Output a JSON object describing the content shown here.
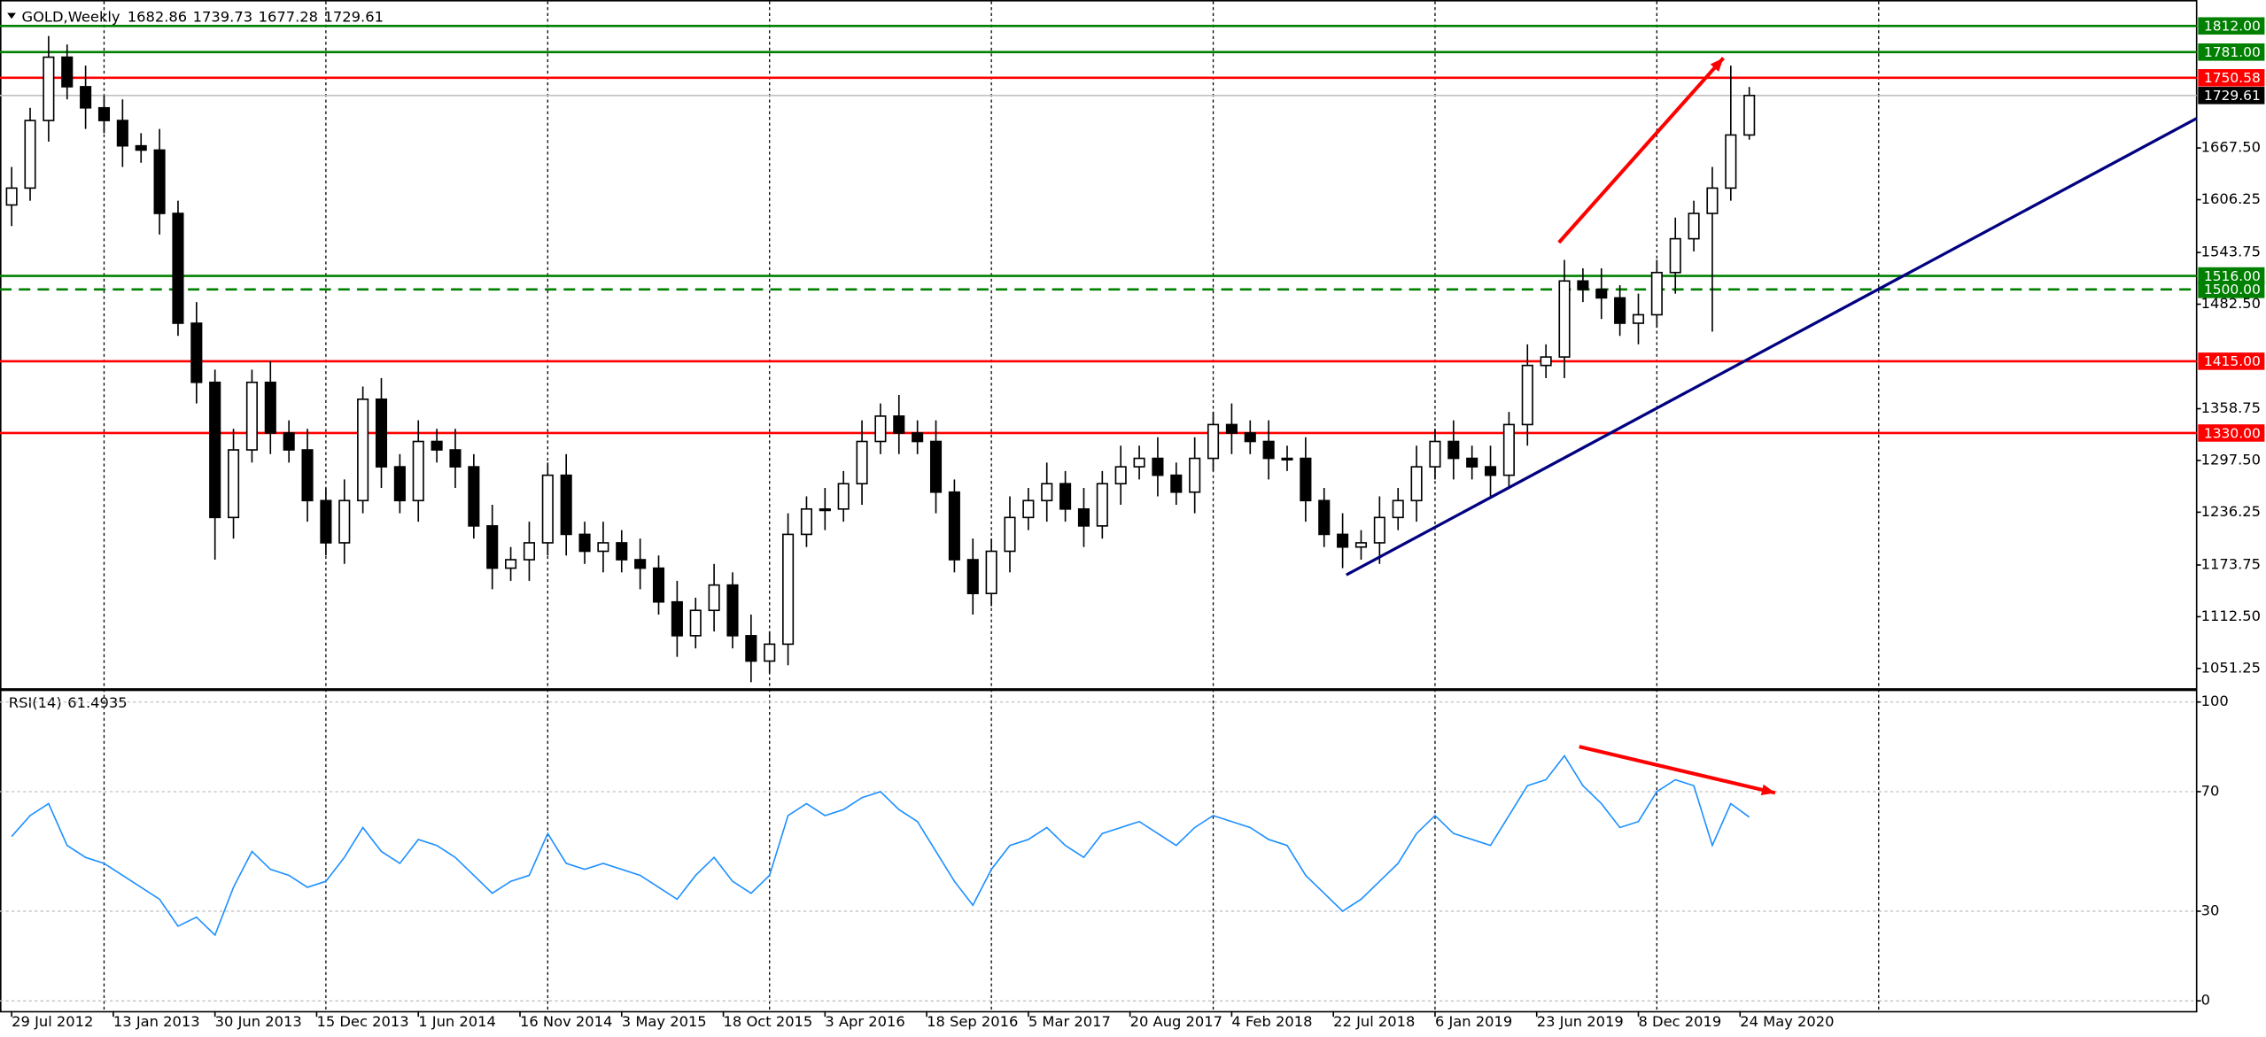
{
  "chart_data": [
    {
      "type": "candlestick",
      "title": "GOLD,Weekly",
      "open": [
        1600,
        1620,
        1700,
        1775,
        1740,
        1715,
        1700,
        1670,
        1665,
        1590,
        1460,
        1390,
        1230,
        1310,
        1390,
        1330,
        1310,
        1250,
        1200,
        1250,
        1370,
        1290,
        1250,
        1320,
        1310,
        1290,
        1220,
        1170,
        1180,
        1200,
        1280,
        1210,
        1190,
        1200,
        1180,
        1170,
        1130,
        1090,
        1120,
        1150,
        1090,
        1060,
        1080,
        1210,
        1240,
        1240,
        1270,
        1320,
        1350,
        1330,
        1320,
        1260,
        1180,
        1140,
        1190,
        1230,
        1250,
        1270,
        1240,
        1220,
        1270,
        1290,
        1300,
        1280,
        1260,
        1300,
        1340,
        1330,
        1320,
        1300,
        1300,
        1250,
        1210,
        1195,
        1200,
        1230,
        1250,
        1290,
        1320,
        1300,
        1290,
        1280,
        1340,
        1410,
        1420,
        1510,
        1500,
        1490,
        1460,
        1470,
        1520,
        1560,
        1590,
        1620,
        1682.86
      ],
      "high": [
        1645,
        1715,
        1800,
        1790,
        1765,
        1730,
        1725,
        1685,
        1690,
        1605,
        1485,
        1405,
        1335,
        1405,
        1415,
        1345,
        1335,
        1265,
        1275,
        1385,
        1395,
        1305,
        1345,
        1335,
        1335,
        1305,
        1245,
        1195,
        1225,
        1295,
        1305,
        1225,
        1225,
        1215,
        1205,
        1185,
        1155,
        1135,
        1175,
        1165,
        1115,
        1095,
        1235,
        1255,
        1265,
        1285,
        1345,
        1365,
        1375,
        1345,
        1345,
        1275,
        1205,
        1205,
        1255,
        1265,
        1295,
        1285,
        1265,
        1285,
        1315,
        1315,
        1325,
        1295,
        1325,
        1355,
        1365,
        1345,
        1345,
        1315,
        1325,
        1265,
        1235,
        1215,
        1255,
        1265,
        1315,
        1335,
        1345,
        1315,
        1315,
        1355,
        1435,
        1435,
        1535,
        1525,
        1525,
        1505,
        1495,
        1535,
        1585,
        1605,
        1645,
        1765,
        1739.73
      ],
      "low": [
        1575,
        1605,
        1675,
        1725,
        1690,
        1685,
        1645,
        1650,
        1565,
        1445,
        1365,
        1180,
        1205,
        1295,
        1305,
        1295,
        1225,
        1185,
        1175,
        1235,
        1265,
        1235,
        1225,
        1295,
        1265,
        1205,
        1145,
        1155,
        1155,
        1185,
        1185,
        1175,
        1165,
        1165,
        1145,
        1115,
        1065,
        1075,
        1095,
        1075,
        1035,
        1045,
        1055,
        1195,
        1215,
        1225,
        1245,
        1305,
        1305,
        1305,
        1235,
        1165,
        1115,
        1125,
        1165,
        1215,
        1225,
        1225,
        1195,
        1205,
        1245,
        1275,
        1255,
        1245,
        1235,
        1285,
        1305,
        1305,
        1275,
        1285,
        1225,
        1195,
        1170,
        1180,
        1175,
        1215,
        1225,
        1275,
        1275,
        1275,
        1255,
        1265,
        1315,
        1395,
        1395,
        1485,
        1465,
        1445,
        1435,
        1455,
        1495,
        1545,
        1450,
        1605,
        1677.28
      ],
      "close": [
        1620,
        1700,
        1775,
        1740,
        1715,
        1700,
        1670,
        1665,
        1590,
        1460,
        1390,
        1230,
        1310,
        1390,
        1330,
        1310,
        1250,
        1200,
        1250,
        1370,
        1290,
        1250,
        1320,
        1310,
        1290,
        1220,
        1170,
        1180,
        1200,
        1280,
        1210,
        1190,
        1200,
        1180,
        1170,
        1130,
        1090,
        1120,
        1150,
        1090,
        1060,
        1080,
        1210,
        1240,
        1240,
        1270,
        1320,
        1350,
        1330,
        1320,
        1260,
        1180,
        1140,
        1190,
        1230,
        1250,
        1270,
        1240,
        1220,
        1270,
        1290,
        1300,
        1280,
        1260,
        1300,
        1340,
        1330,
        1320,
        1300,
        1300,
        1250,
        1210,
        1195,
        1200,
        1230,
        1250,
        1290,
        1320,
        1300,
        1290,
        1280,
        1340,
        1410,
        1420,
        1510,
        1500,
        1490,
        1460,
        1470,
        1520,
        1560,
        1590,
        1620,
        1682.86,
        1729.61
      ],
      "xlim": [
        -0.63,
        118.2
      ],
      "xticks": [
        {
          "value": 0,
          "label": "29 Jul 2012"
        },
        {
          "value": 5.5,
          "label": "13 Jan 2013"
        },
        {
          "value": 11,
          "label": "30 Jun 2013"
        },
        {
          "value": 16.5,
          "label": "15 Dec 2013"
        },
        {
          "value": 22,
          "label": "1 Jun 2014"
        },
        {
          "value": 27.5,
          "label": "16 Nov 2014"
        },
        {
          "value": 33,
          "label": "3 May 2015"
        },
        {
          "value": 38.5,
          "label": "18 Oct 2015"
        },
        {
          "value": 44,
          "label": "3 Apr 2016"
        },
        {
          "value": 49.5,
          "label": "18 Sep 2016"
        },
        {
          "value": 55,
          "label": "5 Mar 2017"
        },
        {
          "value": 60.5,
          "label": "20 Aug 2017"
        },
        {
          "value": 66,
          "label": "4 Feb 2018"
        },
        {
          "value": 71.5,
          "label": "22 Jul 2018"
        },
        {
          "value": 77,
          "label": "6 Jan 2019"
        },
        {
          "value": 82.5,
          "label": "23 Jun 2019"
        },
        {
          "value": 88,
          "label": "8 Dec 2019"
        },
        {
          "value": 93.5,
          "label": "24 May 2020"
        }
      ],
      "xgrid": [
        5,
        17,
        29,
        41,
        53,
        65,
        77,
        89,
        101
      ],
      "ylim": [
        1027,
        1829
      ],
      "yticks": [
        {
          "value": 1051.25,
          "label": "1051.25"
        },
        {
          "value": 1112.5,
          "label": "1112.50"
        },
        {
          "value": 1173.75,
          "label": "1173.75"
        },
        {
          "value": 1236.25,
          "label": "1236.25"
        },
        {
          "value": 1297.5,
          "label": "1297.50"
        },
        {
          "value": 1358.75,
          "label": "1358.75"
        },
        {
          "value": 1482.5,
          "label": "1482.50"
        },
        {
          "value": 1543.75,
          "label": "1543.75"
        },
        {
          "value": 1606.25,
          "label": "1606.25"
        },
        {
          "value": 1667.5,
          "label": "1667.50"
        }
      ],
      "levels": [
        {
          "value": 1812,
          "label": "1812.00",
          "color": "#008000",
          "label_color": "#008000",
          "style": "solid"
        },
        {
          "value": 1781,
          "label": "1781.00",
          "color": "#008000",
          "label_color": "#008000",
          "style": "solid"
        },
        {
          "value": 1750.58,
          "label": "1750.58",
          "color": "#ff0000",
          "label_color": "#ff0000",
          "style": "solid"
        },
        {
          "value": 1729.61,
          "label": "1729.61",
          "color": "#c0c0c0",
          "label_color": "#000000",
          "style": "solid"
        },
        {
          "value": 1516,
          "label": "1516.00",
          "color": "#008000",
          "label_color": "#008000",
          "style": "solid"
        },
        {
          "value": 1500,
          "label": "1500.00",
          "color": "#008000",
          "label_color": "#008000",
          "style": "dashed"
        },
        {
          "value": 1415,
          "label": "1415.00",
          "color": "#ff0000",
          "label_color": "#ff0000",
          "style": "solid"
        },
        {
          "value": 1330,
          "label": "1330.00",
          "color": "#ff0000",
          "label_color": "#ff0000",
          "style": "solid"
        }
      ],
      "trendlines": [
        {
          "x": [
            72.2,
            118.2
          ],
          "y": [
            1162,
            1702.5
          ],
          "color": "#000080"
        }
      ],
      "arrows": [
        {
          "x": [
            83.7,
            92.6
          ],
          "y": [
            1555.5,
            1774
          ],
          "color": "#ff0000"
        }
      ]
    },
    {
      "type": "line",
      "title": "RSI(14)",
      "values": [
        55,
        62,
        66,
        52,
        48,
        46,
        42,
        38,
        34,
        25,
        28,
        22,
        38,
        50,
        44,
        42,
        38,
        40,
        48,
        58,
        50,
        46,
        54,
        52,
        48,
        42,
        36,
        40,
        42,
        56,
        46,
        44,
        46,
        44,
        42,
        38,
        34,
        42,
        48,
        40,
        36,
        42,
        62,
        66,
        62,
        64,
        68,
        70,
        64,
        60,
        50,
        40,
        32,
        44,
        52,
        54,
        58,
        52,
        48,
        56,
        58,
        60,
        56,
        52,
        58,
        62,
        60,
        58,
        54,
        52,
        42,
        36,
        30,
        34,
        40,
        46,
        56,
        62,
        56,
        54,
        52,
        62,
        72,
        74,
        82,
        72,
        66,
        58,
        60,
        70,
        74,
        72,
        52,
        66,
        61.4935
      ],
      "color": "#1e90ff",
      "xlim": [
        -0.63,
        118.2
      ],
      "ylim": [
        -3.4,
        103.9
      ],
      "yticks": [
        0,
        30,
        70,
        100
      ],
      "grid": true,
      "arrows": [
        {
          "x": [
            84.8,
            95.4
          ],
          "y": [
            85.06,
            69.6
          ],
          "color": "#ff0000"
        }
      ]
    }
  ]
}
